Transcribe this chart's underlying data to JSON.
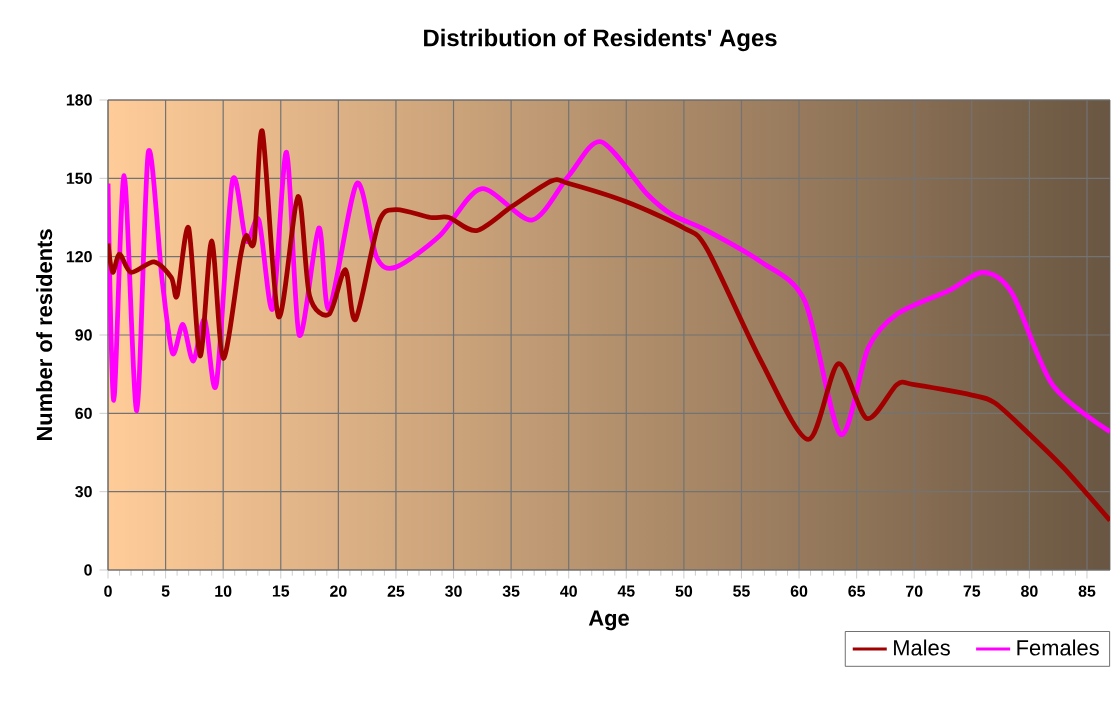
{
  "chart_data": {
    "type": "line",
    "title": "Distribution of Residents' Ages",
    "xlabel": "Age",
    "ylabel": "Number of residents",
    "xlim": [
      0,
      87
    ],
    "ylim": [
      0,
      180
    ],
    "xticks": [
      0,
      5,
      10,
      15,
      20,
      25,
      30,
      35,
      40,
      45,
      50,
      55,
      60,
      65,
      70,
      75,
      80,
      85
    ],
    "yticks": [
      0,
      30,
      60,
      90,
      120,
      150,
      180
    ],
    "grid": true,
    "legend": "bottom right",
    "marker": "none",
    "line_style": "solid",
    "series": [
      {
        "name": "Males",
        "color": "#a00000",
        "x": [
          0,
          0.4,
          1,
          2,
          4,
          5.5,
          6,
          7,
          8,
          9,
          10,
          11.5,
          12,
          12.7,
          13.4,
          14.8,
          16.5,
          17.5,
          19.2,
          20.6,
          21.5,
          23.5,
          25,
          28,
          29.6,
          32,
          35,
          38.5,
          40,
          45,
          50,
          52,
          56.7,
          60.8,
          63.4,
          65.9,
          68.5,
          70,
          75,
          77,
          80,
          83,
          87
        ],
        "values": [
          125,
          114,
          121,
          114,
          118,
          112,
          105,
          131,
          82,
          126,
          81,
          120,
          128,
          126,
          168,
          97,
          143,
          105,
          98,
          115,
          96,
          133,
          138,
          135,
          135,
          130,
          139,
          149,
          148,
          141,
          131,
          123,
          80,
          50,
          79,
          58,
          71,
          71,
          67,
          64,
          52,
          39,
          19
        ]
      },
      {
        "name": "Females",
        "color": "#ff00ff",
        "x": [
          0,
          0.5,
          1.4,
          2.5,
          3.5,
          4.7,
          5.6,
          6.5,
          7.4,
          8.4,
          9.4,
          10.8,
          12,
          13.1,
          14.3,
          15.5,
          16.6,
          18.3,
          19.2,
          21.6,
          23.3,
          25,
          28.8,
          32.4,
          36.8,
          40,
          42.8,
          46.8,
          49,
          52,
          56.7,
          60.5,
          63.6,
          66,
          68.5,
          73,
          76,
          78.5,
          82,
          87
        ],
        "values": [
          148,
          65,
          151,
          61,
          160,
          111,
          83,
          94,
          80,
          96,
          71,
          149,
          126,
          134,
          100,
          160,
          90,
          131,
          100,
          148,
          120,
          116,
          128,
          146,
          134,
          151,
          164,
          144,
          136,
          130,
          118,
          103,
          52,
          85,
          98,
          107,
          114,
          106,
          71,
          53
        ]
      }
    ]
  }
}
